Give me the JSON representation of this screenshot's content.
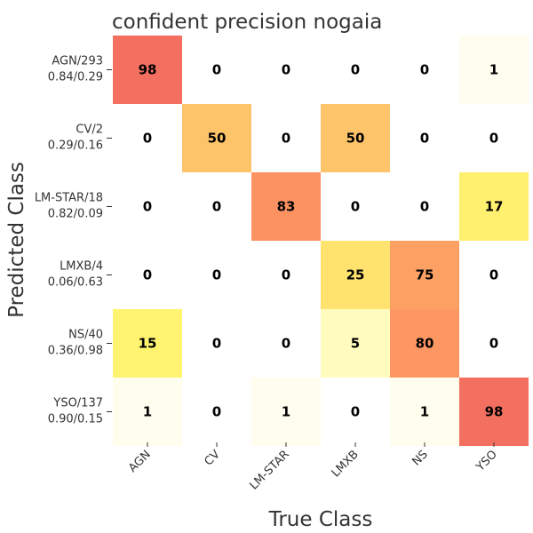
{
  "chart_data": {
    "type": "heatmap",
    "title": "confident precision nogaia",
    "xlabel": "True Class",
    "ylabel": "Predicted Class",
    "columns": [
      "AGN",
      "CV",
      "LM-STAR",
      "LMXB",
      "NS",
      "YSO"
    ],
    "rows": [
      {
        "name": "AGN/293",
        "stats": "0.84/0.29"
      },
      {
        "name": "CV/2",
        "stats": "0.29/0.16"
      },
      {
        "name": "LM-STAR/18",
        "stats": "0.82/0.09"
      },
      {
        "name": "LMXB/4",
        "stats": "0.06/0.63"
      },
      {
        "name": "NS/40",
        "stats": "0.36/0.98"
      },
      {
        "name": "YSO/137",
        "stats": "0.90/0.15"
      }
    ],
    "values": [
      [
        98,
        0,
        0,
        0,
        0,
        1
      ],
      [
        0,
        50,
        0,
        50,
        0,
        0
      ],
      [
        0,
        0,
        83,
        0,
        0,
        17
      ],
      [
        0,
        0,
        0,
        25,
        75,
        0
      ],
      [
        15,
        0,
        0,
        5,
        80,
        0
      ],
      [
        1,
        0,
        1,
        0,
        1,
        98
      ]
    ],
    "value_range": [
      0,
      100
    ],
    "colormap": [
      "#ffffe5",
      "#ffffcc",
      "#fff176",
      "#ffd166",
      "#fdbd63",
      "#fc9460",
      "#f46d5f"
    ],
    "grid": false
  }
}
